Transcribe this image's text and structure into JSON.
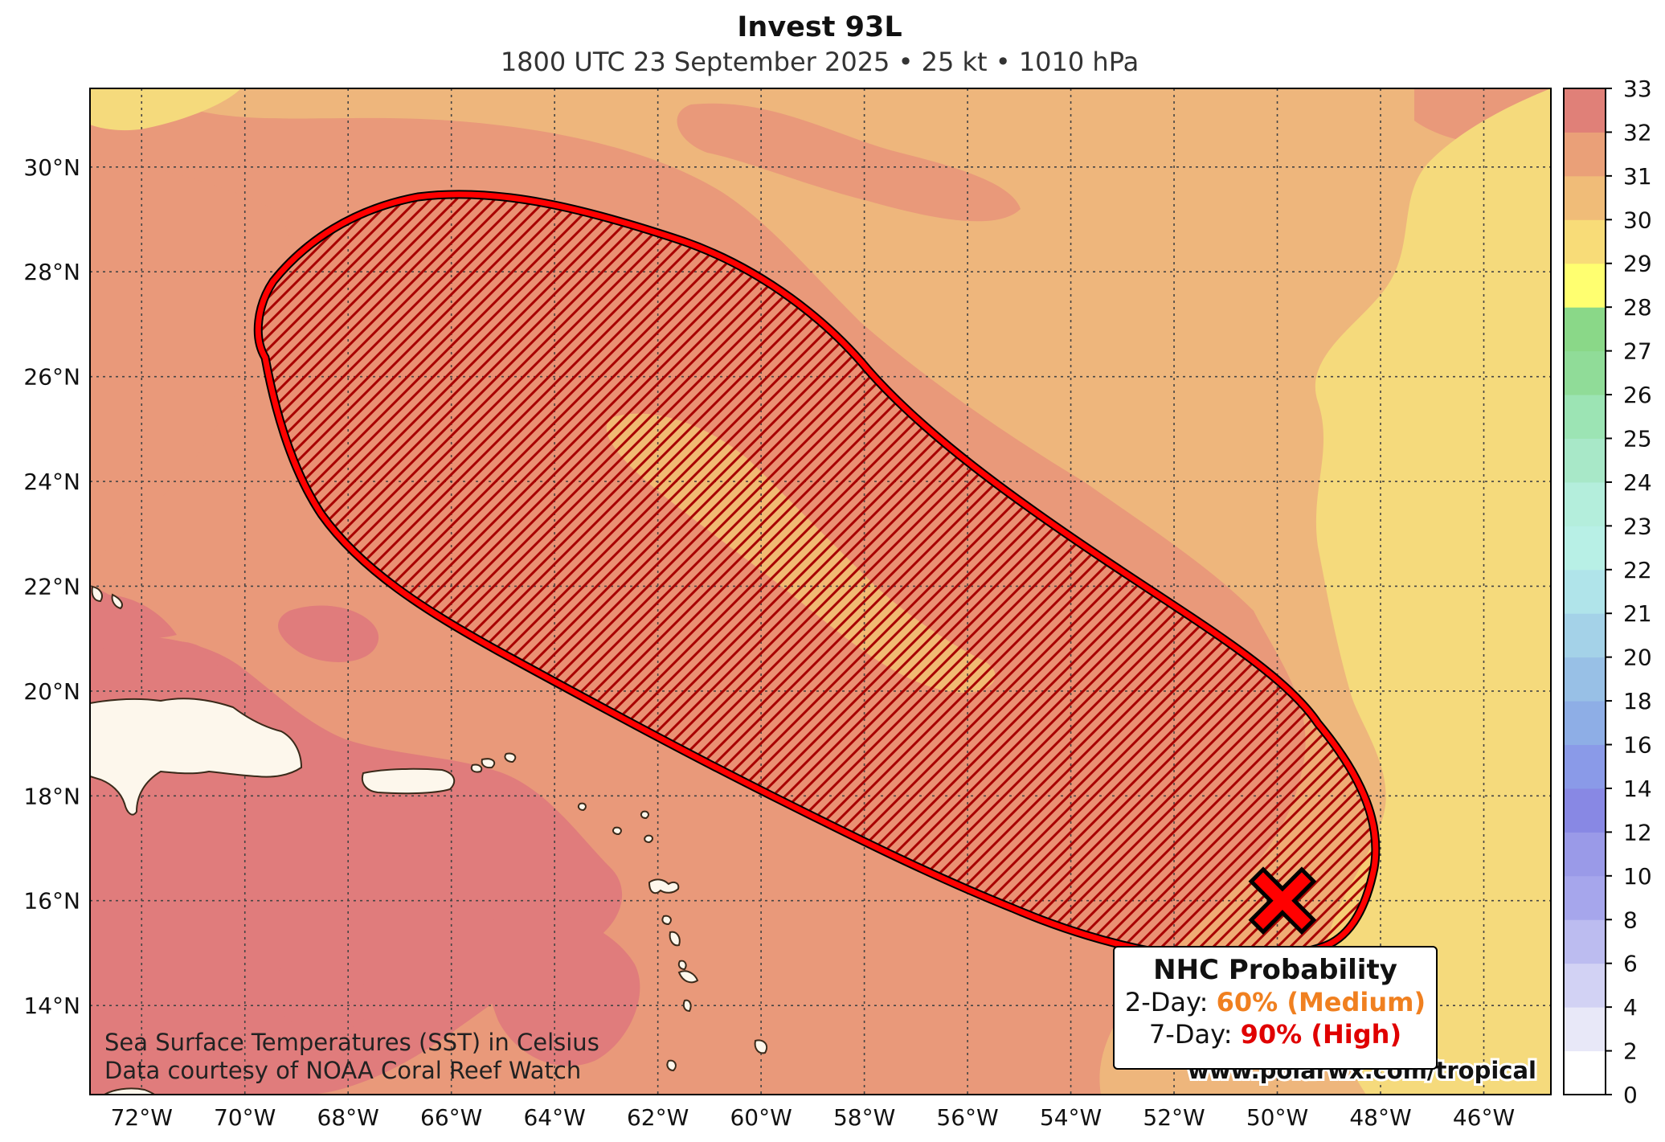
{
  "title": "Invest 93L",
  "subtitle": "1800 UTC 23 September 2025 • 25 kt • 1010 hPa",
  "credits": {
    "line1": "Sea Surface Temperatures (SST) in Celsius",
    "line2": "Data courtesy of NOAA Coral Reef Watch",
    "url": "www.polarwx.com/tropical"
  },
  "legend": {
    "title": "NHC Probability",
    "two_day_label": "2-Day:",
    "two_day_value": "60% (Medium)",
    "two_day_color": "#f08020",
    "seven_day_label": "7-Day:",
    "seven_day_value": "90% (High)",
    "seven_day_color": "#e00000"
  },
  "map": {
    "lon_range": [
      -73,
      -44.7
    ],
    "lat_range": [
      12.3,
      31.5
    ],
    "lon_ticks": [
      "72°W",
      "70°W",
      "68°W",
      "66°W",
      "64°W",
      "62°W",
      "60°W",
      "58°W",
      "56°W",
      "54°W",
      "52°W",
      "50°W",
      "48°W",
      "46°W"
    ],
    "lat_ticks": [
      "14°N",
      "16°N",
      "18°N",
      "20°N",
      "22°N",
      "24°N",
      "26°N",
      "28°N",
      "30°N"
    ],
    "storm_marker": {
      "lon": -49.9,
      "lat": 16.0,
      "icon": "x-marker-icon",
      "color": "#ff0000"
    },
    "outlook_area_color": "#ff0000",
    "land_color": "#fdf7ec"
  },
  "colorbar": {
    "ticks": [
      "0",
      "2",
      "4",
      "6",
      "8",
      "10",
      "12",
      "14",
      "16",
      "18",
      "20",
      "21",
      "22",
      "23",
      "24",
      "25",
      "26",
      "27",
      "28",
      "29",
      "30",
      "31",
      "32",
      "33"
    ],
    "colors": [
      "#ffffff",
      "#e8e8f8",
      "#d2d2f4",
      "#bcbcf0",
      "#a6a6ec",
      "#9a9ae8",
      "#8888e4",
      "#8a9ae8",
      "#8eaee6",
      "#98c0e6",
      "#a4d2e8",
      "#b0e4ea",
      "#b8f0e6",
      "#b4eedc",
      "#a8e8c8",
      "#9ce4b4",
      "#90dc98",
      "#8ad888",
      "#ffff70",
      "#f8dc78",
      "#f0bc78",
      "#eaa078",
      "#e08078",
      "#e89aa0",
      "#f4c8e8"
    ]
  }
}
